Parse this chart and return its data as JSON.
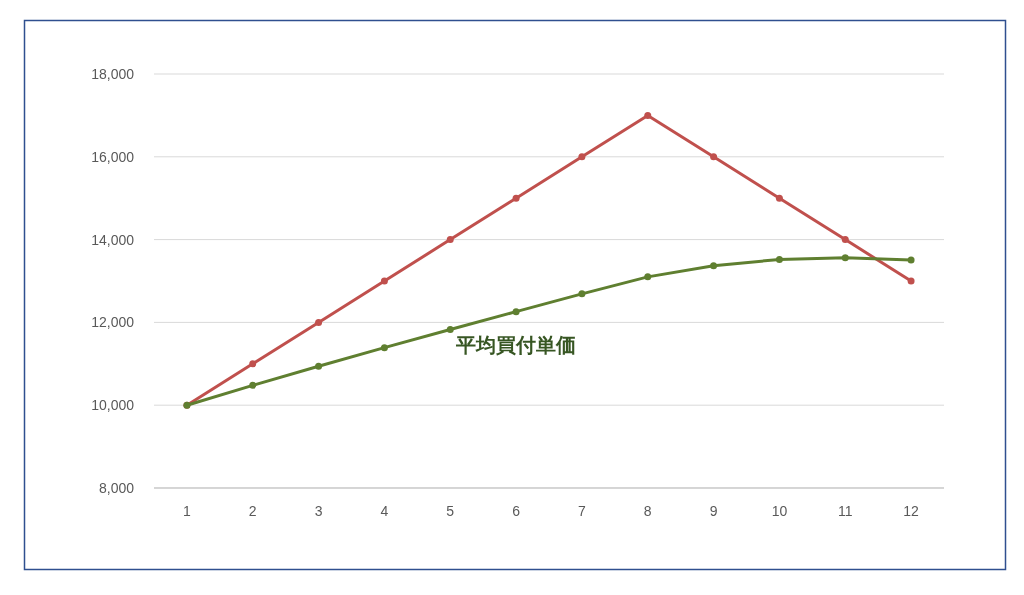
{
  "chart_data": {
    "type": "line",
    "x": [
      1,
      2,
      3,
      4,
      5,
      6,
      7,
      8,
      9,
      10,
      11,
      12
    ],
    "xlim": [
      0.5,
      12.5
    ],
    "xticks": [
      1,
      2,
      3,
      4,
      5,
      6,
      7,
      8,
      9,
      10,
      11,
      12
    ],
    "series": [
      {
        "color": "#c0504d",
        "values": [
          10000,
          11000,
          12000,
          13000,
          14000,
          15000,
          16000,
          17000,
          16000,
          15000,
          14000,
          13000
        ]
      },
      {
        "name": "平均買付単価",
        "color": "#5f7f30",
        "values": [
          10000,
          10480,
          10940,
          11390,
          11830,
          12260,
          12690,
          13100,
          13370,
          13520,
          13560,
          13510
        ]
      }
    ],
    "ylim": [
      8000,
      18000
    ],
    "yticks": [
      {
        "value": 8000,
        "label": "8,000"
      },
      {
        "value": 10000,
        "label": "10,000"
      },
      {
        "value": 12000,
        "label": "12,000"
      },
      {
        "value": 14000,
        "label": "14,000"
      },
      {
        "value": 16000,
        "label": "16,000"
      },
      {
        "value": 18000,
        "label": "18,000"
      }
    ],
    "grid": "y",
    "marker": "circle",
    "line_style": "solid"
  }
}
